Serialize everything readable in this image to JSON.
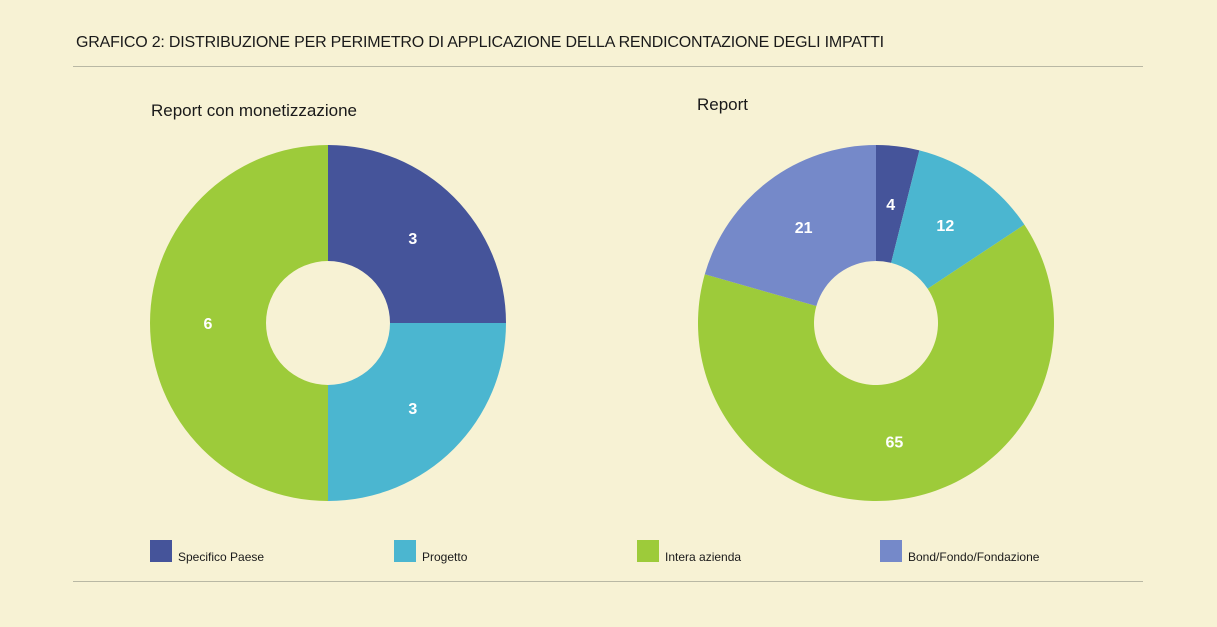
{
  "title": "GRAFICO 2:  DISTRIBUZIONE PER PERIMETRO DI APPLICAZIONE DELLA RENDICONTAZIONE DEGLI IMPATTI",
  "chart_data": [
    {
      "type": "pie",
      "variant": "donut",
      "title": "Report con monetizzazione",
      "categories": [
        "Specifico Paese",
        "Progetto",
        "Intera azienda",
        "Bond/Fondo/Fondazione"
      ],
      "values": [
        3,
        3,
        6,
        0
      ],
      "colors": [
        "#45549a",
        "#4bb6d0",
        "#9dcb3a",
        "#7589c9"
      ]
    },
    {
      "type": "pie",
      "variant": "donut",
      "title": "Report",
      "categories": [
        "Specifico Paese",
        "Progetto",
        "Intera azienda",
        "Bond/Fondo/Fondazione"
      ],
      "values": [
        4,
        12,
        65,
        21
      ],
      "colors": [
        "#45549a",
        "#4bb6d0",
        "#9dcb3a",
        "#7589c9"
      ]
    }
  ],
  "legend": {
    "placement": "bottom",
    "items": [
      {
        "label": "Specifico Paese",
        "color": "#45549a"
      },
      {
        "label": "Progetto",
        "color": "#4bb6d0"
      },
      {
        "label": "Intera azienda",
        "color": "#9dcb3a"
      },
      {
        "label": "Bond/Fondo/Fondazione",
        "color": "#7589c9"
      }
    ]
  }
}
